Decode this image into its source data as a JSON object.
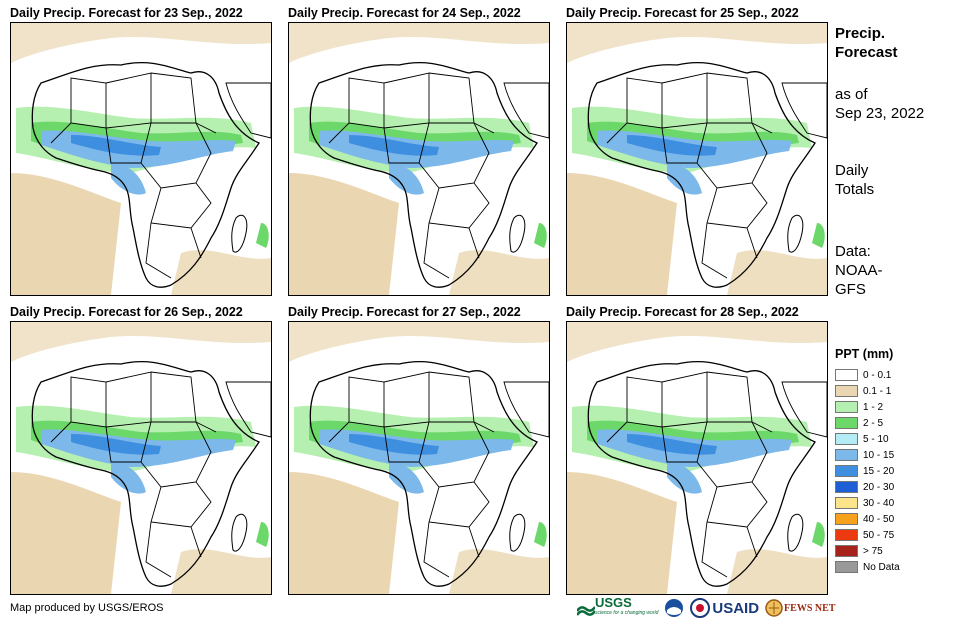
{
  "panels": [
    {
      "title": "Daily Precip. Forecast for 23  Sep., 2022"
    },
    {
      "title": "Daily Precip. Forecast for 24  Sep., 2022"
    },
    {
      "title": "Daily Precip. Forecast for 25  Sep., 2022"
    },
    {
      "title": "Daily Precip. Forecast for 26  Sep., 2022"
    },
    {
      "title": "Daily Precip. Forecast for 27  Sep., 2022"
    },
    {
      "title": "Daily Precip. Forecast for 28  Sep., 2022"
    }
  ],
  "side": {
    "title_line1": "Precip.",
    "title_line2": "Forecast",
    "asof_line1": "as of",
    "asof_line2": "Sep 23, 2022",
    "totals_line1": "Daily",
    "totals_line2": "Totals",
    "data_line1": "Data:",
    "data_line2": "NOAA-",
    "data_line3": "GFS"
  },
  "legend": {
    "title": "PPT (mm)",
    "items": [
      {
        "label": "0 - 0.1",
        "color": "#ffffff"
      },
      {
        "label": "0.1 - 1",
        "color": "#ead7b2"
      },
      {
        "label": "1 - 2",
        "color": "#b6f0b0"
      },
      {
        "label": "2 - 5",
        "color": "#6cd86a"
      },
      {
        "label": "5 - 10",
        "color": "#b4ecf6"
      },
      {
        "label": "10 - 15",
        "color": "#7db8ea"
      },
      {
        "label": "15 - 20",
        "color": "#3f8fe0"
      },
      {
        "label": "20 - 30",
        "color": "#1f5fd6"
      },
      {
        "label": "30 - 40",
        "color": "#fbe48a"
      },
      {
        "label": "40 - 50",
        "color": "#f6a21c"
      },
      {
        "label": "50 - 75",
        "color": "#ec3a10"
      },
      {
        "label": "> 75",
        "color": "#a5231a"
      },
      {
        "label": "No Data",
        "color": "#999999"
      }
    ]
  },
  "credit": "Map produced by USGS/EROS",
  "logos": {
    "usgs": "USGS",
    "usgs_tagline": "science for a changing world",
    "usaid": "USAID",
    "fewsnet": "FEWS NET"
  }
}
